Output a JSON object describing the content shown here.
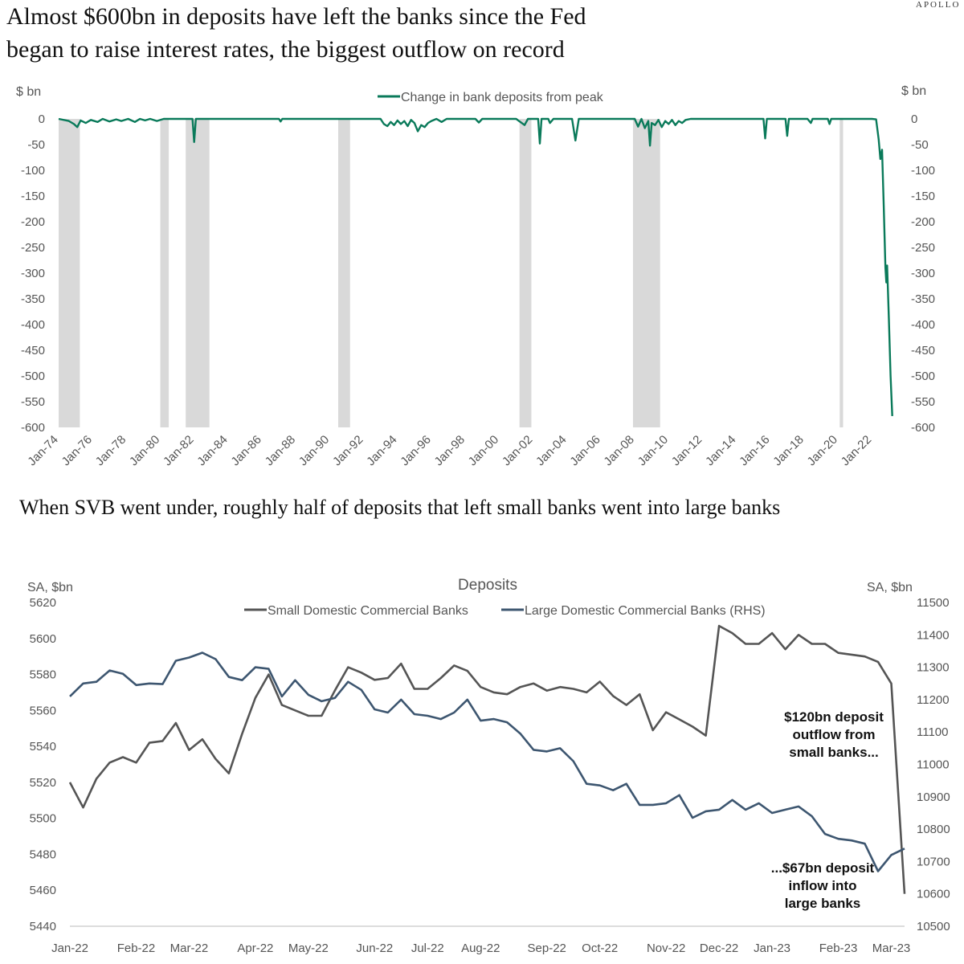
{
  "brand": "APOLLO",
  "chart_data": [
    {
      "type": "line",
      "title": "Almost $600bn in deposits have left the banks since the Fed began to raise interest rates, the biggest outflow on record",
      "title_lines": [
        "Almost $600bn in deposits have left the banks since the Fed",
        "began to raise interest rates, the biggest outflow on record"
      ],
      "ylabel_left": "$ bn",
      "ylabel_right": "$ bn",
      "ylim": [
        -600,
        0
      ],
      "yticks": [
        0,
        -50,
        -100,
        -150,
        -200,
        -250,
        -300,
        -350,
        -400,
        -450,
        -500,
        -550,
        -600
      ],
      "xlim": [
        1974.0,
        2023.5
      ],
      "xticks": [
        {
          "label": "Jan-74",
          "x": 1974
        },
        {
          "label": "Jan-76",
          "x": 1976
        },
        {
          "label": "Jan-78",
          "x": 1978
        },
        {
          "label": "Jan-80",
          "x": 1980
        },
        {
          "label": "Jan-82",
          "x": 1982
        },
        {
          "label": "Jan-84",
          "x": 1984
        },
        {
          "label": "Jan-86",
          "x": 1986
        },
        {
          "label": "Jan-88",
          "x": 1988
        },
        {
          "label": "Jan-90",
          "x": 1990
        },
        {
          "label": "Jan-92",
          "x": 1992
        },
        {
          "label": "Jan-94",
          "x": 1994
        },
        {
          "label": "Jan-96",
          "x": 1996
        },
        {
          "label": "Jan-98",
          "x": 1998
        },
        {
          "label": "Jan-00",
          "x": 2000
        },
        {
          "label": "Jan-02",
          "x": 2002
        },
        {
          "label": "Jan-04",
          "x": 2004
        },
        {
          "label": "Jan-06",
          "x": 2006
        },
        {
          "label": "Jan-08",
          "x": 2008
        },
        {
          "label": "Jan-10",
          "x": 2010
        },
        {
          "label": "Jan-12",
          "x": 2012
        },
        {
          "label": "Jan-14",
          "x": 2014
        },
        {
          "label": "Jan-16",
          "x": 2016
        },
        {
          "label": "Jan-18",
          "x": 2018
        },
        {
          "label": "Jan-20",
          "x": 2020
        },
        {
          "label": "Jan-22",
          "x": 2022
        }
      ],
      "recessions": [
        [
          1974.0,
          1975.25
        ],
        [
          1980.0,
          1980.5
        ],
        [
          1981.5,
          1982.9
        ],
        [
          1990.5,
          1991.2
        ],
        [
          2001.2,
          2001.9
        ],
        [
          2007.9,
          2009.5
        ],
        [
          2020.1,
          2020.3
        ]
      ],
      "series": [
        {
          "name": "Change in bank deposits from peak",
          "color": "#0a7a5a",
          "points": [
            [
              1974.0,
              0
            ],
            [
              1974.6,
              -4
            ],
            [
              1974.9,
              -10
            ],
            [
              1975.1,
              -16
            ],
            [
              1975.3,
              -3
            ],
            [
              1975.6,
              -8
            ],
            [
              1975.9,
              -2
            ],
            [
              1976.3,
              -6
            ],
            [
              1976.6,
              0
            ],
            [
              1977.0,
              -5
            ],
            [
              1977.4,
              -1
            ],
            [
              1977.7,
              -4
            ],
            [
              1978.1,
              0
            ],
            [
              1978.5,
              -6
            ],
            [
              1978.8,
              0
            ],
            [
              1979.1,
              -3
            ],
            [
              1979.4,
              0
            ],
            [
              1979.8,
              -4
            ],
            [
              1980.2,
              0
            ],
            [
              1981.0,
              0
            ],
            [
              1981.9,
              0
            ],
            [
              1982.0,
              -45
            ],
            [
              1982.1,
              0
            ],
            [
              1983.0,
              0
            ],
            [
              1986.0,
              0
            ],
            [
              1987.0,
              0
            ],
            [
              1987.1,
              -5
            ],
            [
              1987.2,
              0
            ],
            [
              1991.0,
              0
            ],
            [
              1993.0,
              0
            ],
            [
              1993.2,
              -10
            ],
            [
              1993.4,
              -14
            ],
            [
              1993.6,
              -6
            ],
            [
              1993.8,
              -12
            ],
            [
              1994.0,
              -3
            ],
            [
              1994.2,
              -10
            ],
            [
              1994.4,
              -4
            ],
            [
              1994.6,
              -14
            ],
            [
              1994.8,
              -2
            ],
            [
              1995.0,
              -8
            ],
            [
              1995.2,
              -24
            ],
            [
              1995.4,
              -12
            ],
            [
              1995.6,
              -16
            ],
            [
              1995.8,
              -8
            ],
            [
              1996.0,
              -4
            ],
            [
              1996.3,
              0
            ],
            [
              1996.6,
              -6
            ],
            [
              1996.9,
              0
            ],
            [
              1998.6,
              0
            ],
            [
              1998.8,
              -7
            ],
            [
              1999.0,
              0
            ],
            [
              2001.0,
              0
            ],
            [
              2001.5,
              -12
            ],
            [
              2001.7,
              0
            ],
            [
              2002.3,
              0
            ],
            [
              2002.4,
              -48
            ],
            [
              2002.5,
              0
            ],
            [
              2002.9,
              0
            ],
            [
              2003.0,
              -8
            ],
            [
              2003.2,
              0
            ],
            [
              2004.3,
              0
            ],
            [
              2004.5,
              -42
            ],
            [
              2004.7,
              0
            ],
            [
              2008.0,
              0
            ],
            [
              2008.2,
              -15
            ],
            [
              2008.4,
              0
            ],
            [
              2008.6,
              -18
            ],
            [
              2008.8,
              -4
            ],
            [
              2008.9,
              -52
            ],
            [
              2009.0,
              -8
            ],
            [
              2009.2,
              -12
            ],
            [
              2009.4,
              -2
            ],
            [
              2009.6,
              -16
            ],
            [
              2009.8,
              -4
            ],
            [
              2010.0,
              -10
            ],
            [
              2010.2,
              -2
            ],
            [
              2010.4,
              -12
            ],
            [
              2010.6,
              -4
            ],
            [
              2010.8,
              -8
            ],
            [
              2011.0,
              -2
            ],
            [
              2011.3,
              0
            ],
            [
              2015.6,
              0
            ],
            [
              2015.7,
              -38
            ],
            [
              2015.8,
              0
            ],
            [
              2016.9,
              0
            ],
            [
              2017.0,
              -33
            ],
            [
              2017.1,
              0
            ],
            [
              2018.2,
              0
            ],
            [
              2018.4,
              -8
            ],
            [
              2018.5,
              0
            ],
            [
              2019.4,
              0
            ],
            [
              2019.5,
              -10
            ],
            [
              2019.6,
              0
            ],
            [
              2022.0,
              0
            ],
            [
              2022.25,
              -1
            ],
            [
              2022.4,
              -40
            ],
            [
              2022.5,
              -78
            ],
            [
              2022.6,
              -60
            ],
            [
              2022.7,
              -170
            ],
            [
              2022.8,
              -290
            ],
            [
              2022.85,
              -318
            ],
            [
              2022.9,
              -285
            ],
            [
              2023.0,
              -390
            ],
            [
              2023.1,
              -500
            ],
            [
              2023.2,
              -578
            ]
          ]
        }
      ]
    },
    {
      "type": "line",
      "title": "Deposits",
      "headline": "When SVB went under, roughly half of deposits that left small banks went into large banks",
      "ylabel_left": "SA, $bn",
      "ylabel_right": "SA, $bn",
      "ylim_left": [
        5440,
        5620
      ],
      "ylim_right": [
        10500,
        11500
      ],
      "yticks_left": [
        5620,
        5600,
        5580,
        5560,
        5540,
        5520,
        5500,
        5480,
        5460,
        5440
      ],
      "yticks_right": [
        11500,
        11400,
        11300,
        11200,
        11100,
        11000,
        10900,
        10800,
        10700,
        10600,
        10500
      ],
      "xlim": [
        0,
        63
      ],
      "xticks": [
        {
          "label": "Jan-22",
          "x": 0
        },
        {
          "label": "Feb-22",
          "x": 5
        },
        {
          "label": "Mar-22",
          "x": 9
        },
        {
          "label": "Apr-22",
          "x": 14
        },
        {
          "label": "May-22",
          "x": 18
        },
        {
          "label": "Jun-22",
          "x": 23
        },
        {
          "label": "Jul-22",
          "x": 27
        },
        {
          "label": "Aug-22",
          "x": 31
        },
        {
          "label": "Sep-22",
          "x": 36
        },
        {
          "label": "Oct-22",
          "x": 40
        },
        {
          "label": "Nov-22",
          "x": 45
        },
        {
          "label": "Dec-22",
          "x": 49
        },
        {
          "label": "Jan-23",
          "x": 53
        },
        {
          "label": "Feb-23",
          "x": 58
        },
        {
          "label": "Mar-23",
          "x": 62
        }
      ],
      "series": [
        {
          "name": "Small Domestic Commercial Banks",
          "axis": "left",
          "color": "#555555",
          "values": [
            5520,
            5506,
            5522,
            5531,
            5534,
            5531,
            5542,
            5543,
            5553,
            5538,
            5544,
            5533,
            5525,
            5547,
            5567,
            5580,
            5563,
            5560,
            5557,
            5557,
            5571,
            5584,
            5581,
            5577,
            5578,
            5586,
            5572,
            5572,
            5578,
            5585,
            5582,
            5573,
            5570,
            5569,
            5573,
            5575,
            5571,
            5573,
            5572,
            5570,
            5576,
            5568,
            5563,
            5569,
            5549,
            5559,
            5555,
            5551,
            5546,
            5607,
            5603,
            5597,
            5597,
            5603,
            5594,
            5602,
            5597,
            5597,
            5592,
            5591,
            5590,
            5587,
            5575,
            5458
          ]
        },
        {
          "name": "Large Domestic Commercial Banks (RHS)",
          "axis": "right",
          "color": "#3d5670",
          "values": [
            11210,
            11250,
            11255,
            11290,
            11280,
            11245,
            11250,
            11248,
            11320,
            11330,
            11345,
            11325,
            11270,
            11260,
            11300,
            11295,
            11210,
            11260,
            11215,
            11195,
            11205,
            11255,
            11230,
            11170,
            11160,
            11200,
            11155,
            11150,
            11140,
            11160,
            11200,
            11135,
            11140,
            11130,
            11095,
            11045,
            11040,
            11050,
            11010,
            10940,
            10935,
            10920,
            10940,
            10875,
            10875,
            10880,
            10905,
            10835,
            10855,
            10860,
            10890,
            10860,
            10880,
            10850,
            10860,
            10870,
            10840,
            10785,
            10770,
            10765,
            10755,
            10670,
            10720,
            10740
          ]
        }
      ],
      "annotations": [
        {
          "lines": [
            "$120bn deposit",
            "outflow from",
            "small banks..."
          ]
        },
        {
          "lines": [
            "...$67bn deposit",
            "inflow into",
            "large banks"
          ]
        }
      ]
    }
  ]
}
